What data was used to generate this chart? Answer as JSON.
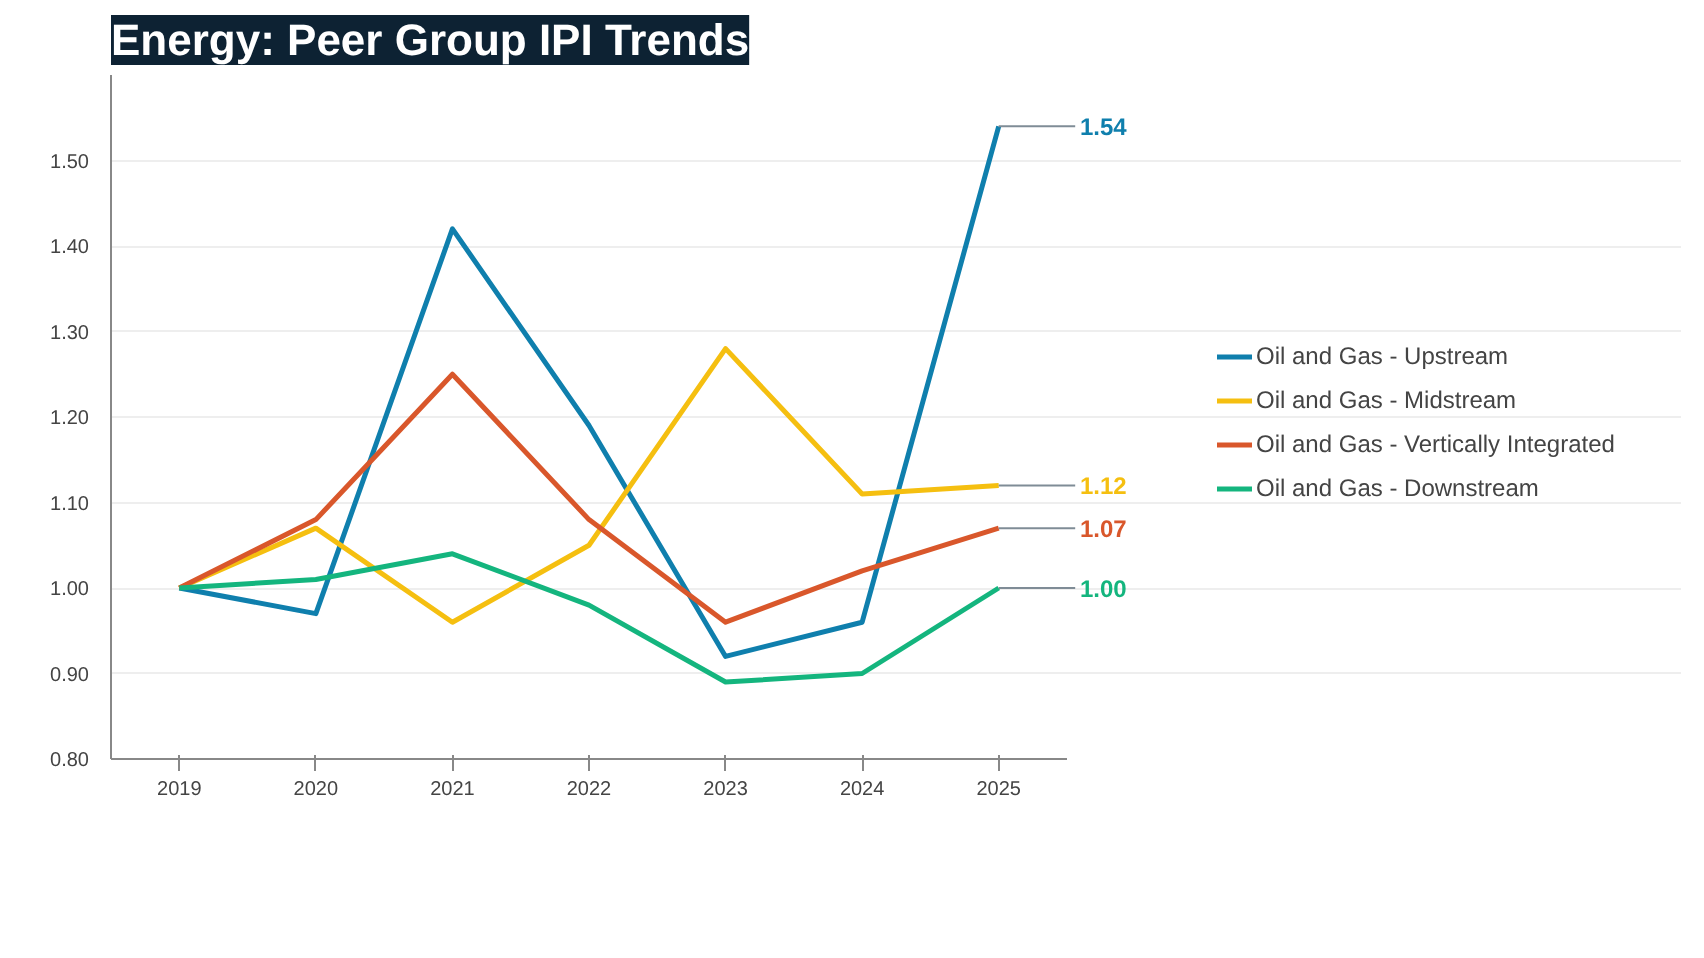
{
  "chart_data": {
    "type": "line",
    "title": "Energy: Peer Group IPI Trends",
    "x": [
      2019,
      2020,
      2021,
      2022,
      2023,
      2024,
      2025
    ],
    "xlim": [
      2018.5,
      2025.5
    ],
    "xticks": [
      2019,
      2020,
      2021,
      2022,
      2023,
      2024,
      2025
    ],
    "ylim": [
      0.8,
      1.6
    ],
    "yticks": [
      {
        "value": 0.8,
        "label": "0.80"
      },
      {
        "value": 0.9,
        "label": "0.90"
      },
      {
        "value": 1.0,
        "label": "1.00"
      },
      {
        "value": 1.1,
        "label": "1.10"
      },
      {
        "value": 1.2,
        "label": "1.20"
      },
      {
        "value": 1.3,
        "label": "1.30"
      },
      {
        "value": 1.4,
        "label": "1.40"
      },
      {
        "value": 1.5,
        "label": "1.50"
      }
    ],
    "grid": "y",
    "legend": "right",
    "marker": "none",
    "line_style": "solid",
    "series": [
      {
        "name": "Oil and Gas - Upstream",
        "color": "#0f7fad",
        "values": [
          1.0,
          0.97,
          1.42,
          1.19,
          0.92,
          0.96,
          1.54
        ],
        "value_labels": [
          null,
          null,
          null,
          null,
          null,
          null,
          "1.54"
        ]
      },
      {
        "name": "Oil and Gas - Midstream",
        "color": "#f5bf10",
        "values": [
          1.0,
          1.07,
          0.96,
          1.05,
          1.28,
          1.11,
          1.12
        ],
        "value_labels": [
          null,
          null,
          null,
          null,
          null,
          null,
          "1.12"
        ]
      },
      {
        "name": "Oil and Gas - Vertically Integrated",
        "color": "#d9572b",
        "values": [
          1.0,
          1.08,
          1.25,
          1.08,
          0.96,
          1.02,
          1.07
        ],
        "value_labels": [
          null,
          null,
          null,
          null,
          null,
          null,
          "1.07"
        ]
      },
      {
        "name": "Oil and Gas - Downstream",
        "color": "#14b57e",
        "values": [
          1.0,
          1.01,
          1.04,
          0.98,
          0.89,
          0.9,
          1.0
        ],
        "value_labels": [
          null,
          null,
          null,
          null,
          null,
          null,
          "1.00"
        ]
      }
    ]
  }
}
